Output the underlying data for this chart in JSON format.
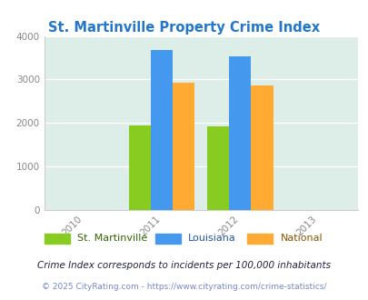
{
  "title": "St. Martinville Property Crime Index",
  "title_color": "#2277cc",
  "years": [
    2011,
    2012
  ],
  "st_martinville": [
    1950,
    1920
  ],
  "louisiana": [
    3670,
    3540
  ],
  "national": [
    2920,
    2860
  ],
  "bar_colors": {
    "st_martinville": "#88cc22",
    "louisiana": "#4499ee",
    "national": "#ffaa33"
  },
  "xlim": [
    2009.5,
    2013.5
  ],
  "ylim": [
    0,
    4000
  ],
  "yticks": [
    0,
    1000,
    2000,
    3000,
    4000
  ],
  "xticks": [
    2010,
    2011,
    2012,
    2013
  ],
  "background_color": "#ddeee8",
  "legend_labels": [
    "St. Martinville",
    "Louisiana",
    "National"
  ],
  "legend_text_colors": [
    "#336600",
    "#2255aa",
    "#885500"
  ],
  "footnote1": "Crime Index corresponds to incidents per 100,000 inhabitants",
  "footnote2": "© 2025 CityRating.com - https://www.cityrating.com/crime-statistics/",
  "footnote1_color": "#222244",
  "footnote2_color": "#7788cc",
  "bar_width": 0.28
}
